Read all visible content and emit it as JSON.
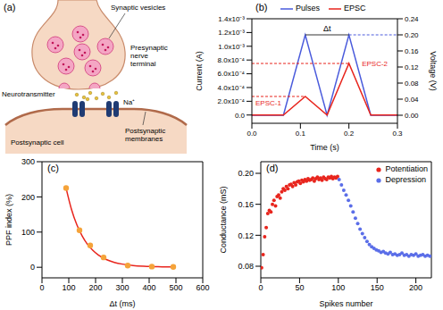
{
  "diagram": {
    "panel_label": "(a)",
    "vesicles": "Synaptic vesicles",
    "terminal": "Presynaptic nerve terminal",
    "transmitter": "Neurotransmitter",
    "ion": "Na⁺",
    "cell": "Postsynaptic cell",
    "membrane": "Postsynaptic membranes"
  },
  "chart_data": [
    {
      "panel_label": "(b)",
      "type": "line",
      "xlabel": "Time (s)",
      "ylabel": "Current (A)",
      "y2label": "Voltage (V)",
      "x": [
        0,
        0.065,
        0.11,
        0.155,
        0.2,
        0.245,
        0.3
      ],
      "series": [
        {
          "name": "Pulses",
          "color": "#4a5bdc",
          "axis": "y2",
          "line_style": "solid",
          "values": [
            0,
            0,
            0.2,
            0,
            0.2,
            0,
            0
          ]
        },
        {
          "name": "EPSC",
          "color": "#e8251d",
          "line_style": "solid",
          "values": [
            0,
            0,
            0.00027,
            0,
            0.00075,
            0,
            0
          ]
        }
      ],
      "xlim": [
        0,
        0.3
      ],
      "xticks": [
        {
          "value": 0,
          "label": "0.0"
        },
        0.1,
        0.2,
        0.3
      ],
      "ylim": [
        -0.00012,
        0.0014
      ],
      "yticks": [
        {
          "value": 0,
          "label": "0.0"
        },
        {
          "value": 0.0002,
          "label": "2.0x10⁻⁴"
        },
        {
          "value": 0.0004,
          "label": "4.0x10⁻⁴"
        },
        {
          "value": 0.0006,
          "label": "6.0x10⁻⁴"
        },
        {
          "value": 0.0008,
          "label": "8.0x10⁻⁴"
        },
        {
          "value": 0.001,
          "label": "1.0x10⁻³"
        },
        {
          "value": 0.0012,
          "label": "1.2x10⁻³"
        },
        {
          "value": 0.0014,
          "label": "1.4x10⁻³"
        }
      ],
      "y2lim": [
        -0.02,
        0.24
      ],
      "y2ticks": [
        {
          "value": 0,
          "label": "0.00"
        },
        0.04,
        0.08,
        0.12,
        0.16,
        {
          "value": 0.2,
          "label": "0.20"
        },
        0.24
      ],
      "annotations": {
        "interval": "Δt",
        "responses": [
          "EPSC-1",
          "EPSC-2"
        ]
      },
      "legend": "top"
    },
    {
      "panel_label": "(c)",
      "type": "scatter",
      "xlabel": "Δt (ms)",
      "ylabel": "PPF index (%)",
      "xlim": [
        0,
        600
      ],
      "xticks": [
        0,
        100,
        200,
        300,
        400,
        500,
        600
      ],
      "ylim": [
        -30,
        300
      ],
      "yticks": [
        0,
        100,
        200,
        300
      ],
      "series": [
        {
          "type": "line",
          "line_style": "solid",
          "color": "#e8251d",
          "x": [
            90,
            110,
            130,
            150,
            170,
            190,
            210,
            240,
            270,
            300,
            340,
            380,
            420,
            460,
            500
          ],
          "values": [
            225,
            165,
            121,
            89,
            65,
            48,
            35,
            22,
            14,
            9,
            5,
            3,
            2,
            1,
            1
          ]
        },
        {
          "type": "scatter",
          "marker": "circle",
          "color": "#f5a33a",
          "x": [
            90,
            140,
            180,
            230,
            320,
            410,
            490
          ],
          "values": [
            225,
            105,
            62,
            28,
            5,
            2,
            1
          ]
        }
      ]
    },
    {
      "panel_label": "(d)",
      "type": "scatter",
      "xlabel": "Spikes number",
      "ylabel": "Conductance (mS)",
      "xlim": [
        0,
        220
      ],
      "xticks": [
        0,
        50,
        100,
        150,
        200
      ],
      "ylim": [
        0.065,
        0.215
      ],
      "yticks": [
        0.08,
        0.12,
        0.16,
        {
          "value": 0.2,
          "label": "0.20"
        }
      ],
      "legend": "upper right",
      "series": [
        {
          "name": "Potentiation",
          "type": "scatter",
          "marker": "circle",
          "color": "#e8251d",
          "x": [
            1,
            3,
            5,
            7,
            9,
            11,
            13,
            15,
            17,
            19,
            21,
            23,
            25,
            27,
            29,
            31,
            33,
            35,
            37,
            39,
            41,
            43,
            45,
            47,
            49,
            51,
            53,
            55,
            57,
            59,
            61,
            63,
            65,
            67,
            69,
            71,
            73,
            75,
            77,
            79,
            81,
            83,
            85,
            87,
            89,
            91,
            93,
            95,
            97,
            99
          ],
          "values": [
            0.078,
            0.095,
            0.118,
            0.13,
            0.148,
            0.152,
            0.15,
            0.16,
            0.165,
            0.158,
            0.17,
            0.172,
            0.168,
            0.176,
            0.18,
            0.178,
            0.183,
            0.18,
            0.185,
            0.186,
            0.183,
            0.188,
            0.185,
            0.189,
            0.19,
            0.187,
            0.191,
            0.189,
            0.192,
            0.19,
            0.193,
            0.191,
            0.192,
            0.194,
            0.19,
            0.193,
            0.195,
            0.192,
            0.194,
            0.191,
            0.195,
            0.193,
            0.192,
            0.195,
            0.194,
            0.196,
            0.193,
            0.195,
            0.194,
            0.196
          ]
        },
        {
          "name": "Depression",
          "type": "scatter",
          "marker": "circle",
          "color": "#5b6ee8",
          "x": [
            101,
            104,
            107,
            110,
            113,
            116,
            119,
            122,
            125,
            128,
            131,
            134,
            137,
            140,
            143,
            146,
            149,
            152,
            155,
            158,
            161,
            164,
            167,
            170,
            173,
            176,
            179,
            182,
            185,
            188,
            191,
            194,
            197,
            200,
            203,
            206,
            209,
            212,
            215,
            218
          ],
          "values": [
            0.192,
            0.185,
            0.178,
            0.172,
            0.165,
            0.158,
            0.15,
            0.142,
            0.135,
            0.128,
            0.122,
            0.117,
            0.112,
            0.108,
            0.105,
            0.103,
            0.101,
            0.1,
            0.098,
            0.099,
            0.097,
            0.096,
            0.098,
            0.095,
            0.096,
            0.094,
            0.095,
            0.097,
            0.094,
            0.095,
            0.093,
            0.095,
            0.094,
            0.096,
            0.093,
            0.094,
            0.095,
            0.093,
            0.094,
            0.093
          ]
        }
      ]
    }
  ]
}
